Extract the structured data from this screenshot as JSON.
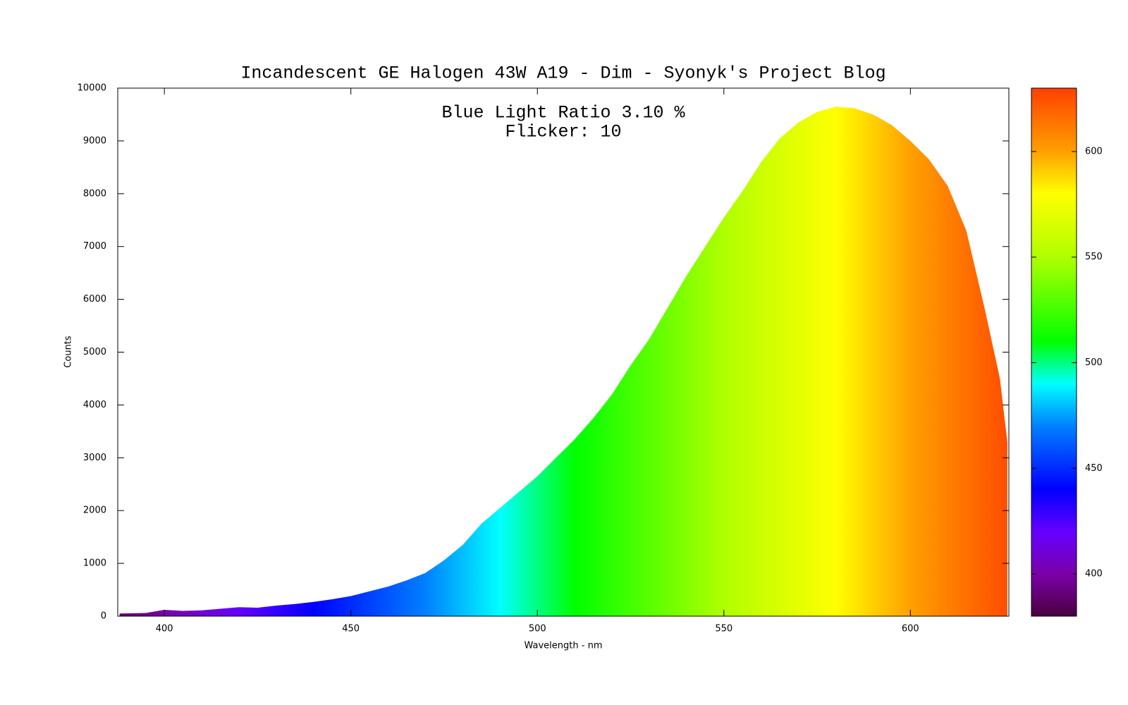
{
  "chart_data": {
    "type": "area",
    "title": "Incandescent GE Halogen 43W A19 - Dim - Syonyk's Project Blog",
    "annotations": [
      "Blue Light Ratio 3.10 %",
      "Flicker: 10"
    ],
    "xlabel": "Wavelength - nm",
    "ylabel": "Counts",
    "x": [
      388,
      395,
      400,
      405,
      410,
      415,
      420,
      425,
      430,
      435,
      440,
      445,
      450,
      455,
      460,
      465,
      470,
      475,
      480,
      485,
      490,
      495,
      500,
      505,
      510,
      515,
      520,
      525,
      530,
      535,
      540,
      545,
      550,
      555,
      560,
      565,
      570,
      575,
      580,
      585,
      590,
      595,
      600,
      605,
      610,
      615,
      620,
      624,
      626
    ],
    "values": [
      50,
      60,
      120,
      100,
      110,
      140,
      170,
      160,
      200,
      230,
      270,
      320,
      380,
      470,
      560,
      680,
      820,
      1060,
      1350,
      1750,
      2050,
      2350,
      2650,
      3000,
      3350,
      3750,
      4200,
      4750,
      5250,
      5850,
      6450,
      7000,
      7550,
      8050,
      8600,
      9050,
      9350,
      9550,
      9650,
      9620,
      9500,
      9300,
      9000,
      8650,
      8150,
      7300,
      5800,
      4500,
      3300
    ],
    "xlim": [
      387.5,
      626.4
    ],
    "xticks": [
      400,
      450,
      500,
      550,
      600
    ],
    "ylim": [
      0,
      10000
    ],
    "yticks": [
      0,
      1000,
      2000,
      3000,
      4000,
      5000,
      6000,
      7000,
      8000,
      9000,
      10000
    ],
    "colorbar_lim": [
      380,
      630
    ],
    "colorbar_ticks": [
      400,
      450,
      500,
      550,
      600
    ],
    "colormap": [
      {
        "value": 380,
        "color": "#4a0040"
      },
      {
        "value": 400,
        "color": "#7a00a8"
      },
      {
        "value": 420,
        "color": "#6600ff"
      },
      {
        "value": 440,
        "color": "#0000ff"
      },
      {
        "value": 470,
        "color": "#0080ff"
      },
      {
        "value": 490,
        "color": "#00ffff"
      },
      {
        "value": 510,
        "color": "#00ff00"
      },
      {
        "value": 550,
        "color": "#b0ff00"
      },
      {
        "value": 580,
        "color": "#ffff00"
      },
      {
        "value": 600,
        "color": "#ffa000"
      },
      {
        "value": 630,
        "color": "#ff4000"
      }
    ]
  }
}
